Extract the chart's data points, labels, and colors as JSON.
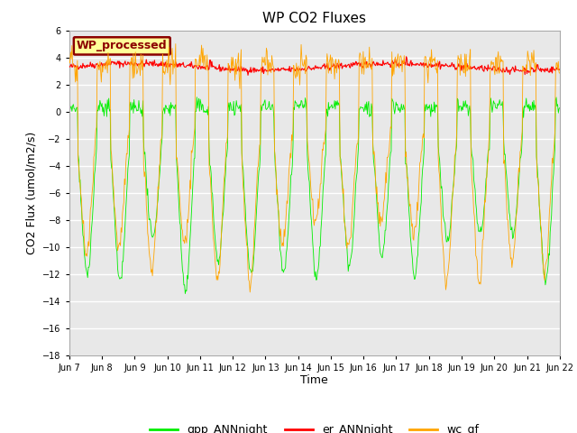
{
  "title": "WP CO2 Fluxes",
  "xlabel": "Time",
  "ylabel_display": "CO2 Flux (umol/m2/s)",
  "ylim": [
    -18,
    6
  ],
  "yticks": [
    -18,
    -16,
    -14,
    -12,
    -10,
    -8,
    -6,
    -4,
    -2,
    0,
    2,
    4,
    6
  ],
  "bg_color": "#e8e8e8",
  "fig_bg_color": "#ffffff",
  "grid_color": "#ffffff",
  "legend_label": "WP_processed",
  "legend_bg": "#ffff99",
  "legend_border": "#8b0000",
  "line_gpp_color": "#00ee00",
  "line_er_color": "#ff0000",
  "line_wc_color": "#ffa500",
  "n_days": 15,
  "points_per_day": 48,
  "start_day": 7,
  "series_labels": [
    "gpp_ANNnight",
    "er_ANNnight",
    "wc_gf"
  ]
}
